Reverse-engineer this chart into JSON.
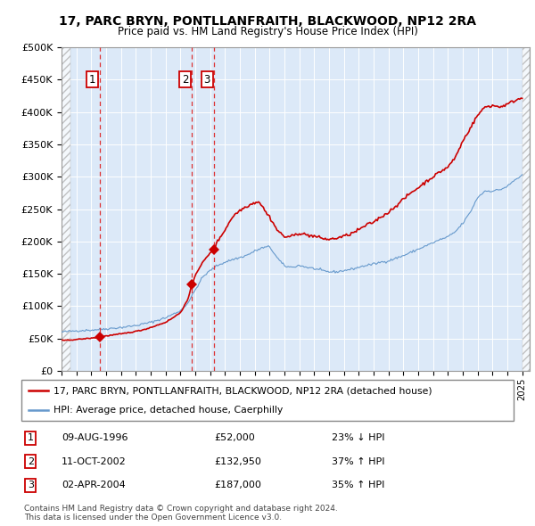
{
  "title1": "17, PARC BRYN, PONTLLANFRAITH, BLACKWOOD, NP12 2RA",
  "title2": "Price paid vs. HM Land Registry's House Price Index (HPI)",
  "sale_years": [
    1996.6,
    2002.78,
    2004.25
  ],
  "sale_prices": [
    52000,
    132950,
    187000
  ],
  "sale_labels": [
    "1",
    "2",
    "3"
  ],
  "legend_line1": "17, PARC BRYN, PONTLLANFRAITH, BLACKWOOD, NP12 2RA (detached house)",
  "legend_line2": "HPI: Average price, detached house, Caerphilly",
  "table_rows": [
    [
      "1",
      "09-AUG-1996",
      "£52,000",
      "23% ↓ HPI"
    ],
    [
      "2",
      "11-OCT-2002",
      "£132,950",
      "37% ↑ HPI"
    ],
    [
      "3",
      "02-APR-2004",
      "£187,000",
      "35% ↑ HPI"
    ]
  ],
  "footer": "Contains HM Land Registry data © Crown copyright and database right 2024.\nThis data is licensed under the Open Government Licence v3.0.",
  "ylim": [
    0,
    500000
  ],
  "yticks": [
    0,
    50000,
    100000,
    150000,
    200000,
    250000,
    300000,
    350000,
    400000,
    450000,
    500000
  ],
  "xlim_start": 1994.0,
  "xlim_end": 2025.5,
  "bg_color": "#dce9f8",
  "red_line_color": "#cc0000",
  "blue_line_color": "#6699cc",
  "sale_marker_color": "#cc0000",
  "dashed_line_color": "#dd3333",
  "hpi_key_points": [
    [
      1994.0,
      60000
    ],
    [
      1995.0,
      62000
    ],
    [
      1996.0,
      63000
    ],
    [
      1997.0,
      65000
    ],
    [
      1998.0,
      67000
    ],
    [
      1999.0,
      70000
    ],
    [
      2000.0,
      75000
    ],
    [
      2001.0,
      82000
    ],
    [
      2002.0,
      93000
    ],
    [
      2002.5,
      105000
    ],
    [
      2003.0,
      125000
    ],
    [
      2003.5,
      145000
    ],
    [
      2004.0,
      155000
    ],
    [
      2004.5,
      163000
    ],
    [
      2005.0,
      168000
    ],
    [
      2005.5,
      172000
    ],
    [
      2006.0,
      175000
    ],
    [
      2006.5,
      179000
    ],
    [
      2007.0,
      185000
    ],
    [
      2007.5,
      190000
    ],
    [
      2008.0,
      192000
    ],
    [
      2008.5,
      175000
    ],
    [
      2009.0,
      162000
    ],
    [
      2009.5,
      160000
    ],
    [
      2010.0,
      163000
    ],
    [
      2010.5,
      160000
    ],
    [
      2011.0,
      158000
    ],
    [
      2011.5,
      155000
    ],
    [
      2012.0,
      153000
    ],
    [
      2012.5,
      153000
    ],
    [
      2013.0,
      155000
    ],
    [
      2013.5,
      157000
    ],
    [
      2014.0,
      160000
    ],
    [
      2014.5,
      163000
    ],
    [
      2015.0,
      165000
    ],
    [
      2015.5,
      168000
    ],
    [
      2016.0,
      170000
    ],
    [
      2016.5,
      174000
    ],
    [
      2017.0,
      178000
    ],
    [
      2017.5,
      183000
    ],
    [
      2018.0,
      188000
    ],
    [
      2018.5,
      193000
    ],
    [
      2019.0,
      198000
    ],
    [
      2019.5,
      203000
    ],
    [
      2020.0,
      207000
    ],
    [
      2020.5,
      215000
    ],
    [
      2021.0,
      228000
    ],
    [
      2021.5,
      245000
    ],
    [
      2022.0,
      268000
    ],
    [
      2022.5,
      278000
    ],
    [
      2023.0,
      278000
    ],
    [
      2023.5,
      280000
    ],
    [
      2024.0,
      285000
    ],
    [
      2024.5,
      295000
    ],
    [
      2025.0,
      302000
    ]
  ],
  "red_key_points_seg0": [
    [
      1994.0,
      47000
    ],
    [
      1994.5,
      47500
    ],
    [
      1995.0,
      48500
    ],
    [
      1995.5,
      49500
    ],
    [
      1996.0,
      50500
    ],
    [
      1996.6,
      52000
    ]
  ],
  "red_key_points_seg1": [
    [
      1996.6,
      52000
    ],
    [
      1997.0,
      54000
    ],
    [
      1997.5,
      55500
    ],
    [
      1998.0,
      57000
    ],
    [
      1998.5,
      59000
    ],
    [
      1999.0,
      61000
    ],
    [
      1999.5,
      63500
    ],
    [
      2000.0,
      67000
    ],
    [
      2000.5,
      71000
    ],
    [
      2001.0,
      75000
    ],
    [
      2001.5,
      82000
    ],
    [
      2002.0,
      90000
    ],
    [
      2002.5,
      110000
    ],
    [
      2002.78,
      132950
    ]
  ],
  "red_key_points_seg2": [
    [
      2002.78,
      132950
    ],
    [
      2003.0,
      148000
    ],
    [
      2003.5,
      168000
    ],
    [
      2004.0,
      182000
    ],
    [
      2004.25,
      187000
    ]
  ],
  "red_key_points_seg3": [
    [
      2004.25,
      187000
    ],
    [
      2004.5,
      200000
    ],
    [
      2005.0,
      218000
    ],
    [
      2005.5,
      238000
    ],
    [
      2006.0,
      248000
    ],
    [
      2006.5,
      255000
    ],
    [
      2007.0,
      260000
    ],
    [
      2007.25,
      262000
    ],
    [
      2007.5,
      255000
    ],
    [
      2007.75,
      245000
    ],
    [
      2008.0,
      238000
    ],
    [
      2008.25,
      228000
    ],
    [
      2008.5,
      218000
    ],
    [
      2009.0,
      207000
    ],
    [
      2009.5,
      208000
    ],
    [
      2010.0,
      213000
    ],
    [
      2010.5,
      210000
    ],
    [
      2011.0,
      208000
    ],
    [
      2011.5,
      205000
    ],
    [
      2012.0,
      203000
    ],
    [
      2012.5,
      205000
    ],
    [
      2013.0,
      208000
    ],
    [
      2013.5,
      212000
    ],
    [
      2014.0,
      218000
    ],
    [
      2014.5,
      225000
    ],
    [
      2015.0,
      230000
    ],
    [
      2015.5,
      238000
    ],
    [
      2016.0,
      245000
    ],
    [
      2016.5,
      255000
    ],
    [
      2017.0,
      265000
    ],
    [
      2017.5,
      275000
    ],
    [
      2018.0,
      283000
    ],
    [
      2018.5,
      292000
    ],
    [
      2019.0,
      300000
    ],
    [
      2019.5,
      308000
    ],
    [
      2020.0,
      315000
    ],
    [
      2020.5,
      330000
    ],
    [
      2021.0,
      355000
    ],
    [
      2021.5,
      375000
    ],
    [
      2022.0,
      395000
    ],
    [
      2022.5,
      408000
    ],
    [
      2023.0,
      410000
    ],
    [
      2023.5,
      408000
    ],
    [
      2024.0,
      412000
    ],
    [
      2024.5,
      418000
    ],
    [
      2025.0,
      422000
    ]
  ]
}
